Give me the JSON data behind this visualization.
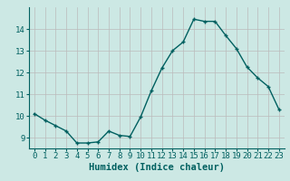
{
  "x": [
    0,
    1,
    2,
    3,
    4,
    5,
    6,
    7,
    8,
    9,
    10,
    11,
    12,
    13,
    14,
    15,
    16,
    17,
    18,
    19,
    20,
    21,
    22,
    23
  ],
  "y": [
    10.1,
    9.8,
    9.55,
    9.3,
    8.75,
    8.75,
    8.8,
    9.3,
    9.1,
    9.05,
    9.95,
    11.15,
    12.2,
    13.0,
    13.4,
    14.45,
    14.35,
    14.35,
    13.7,
    13.1,
    12.25,
    11.75,
    11.35,
    10.3
  ],
  "xlabel": "Humidex (Indice chaleur)",
  "ylim": [
    8.5,
    15.0
  ],
  "xlim": [
    -0.5,
    23.5
  ],
  "bg_color": "#cce8e4",
  "line_color": "#006060",
  "grid_color": "#bbbbbb",
  "yticks": [
    9,
    10,
    11,
    12,
    13,
    14
  ],
  "xticks": [
    0,
    1,
    2,
    3,
    4,
    5,
    6,
    7,
    8,
    9,
    10,
    11,
    12,
    13,
    14,
    15,
    16,
    17,
    18,
    19,
    20,
    21,
    22,
    23
  ],
  "tick_fontsize": 6.5,
  "xlabel_fontsize": 7.5
}
